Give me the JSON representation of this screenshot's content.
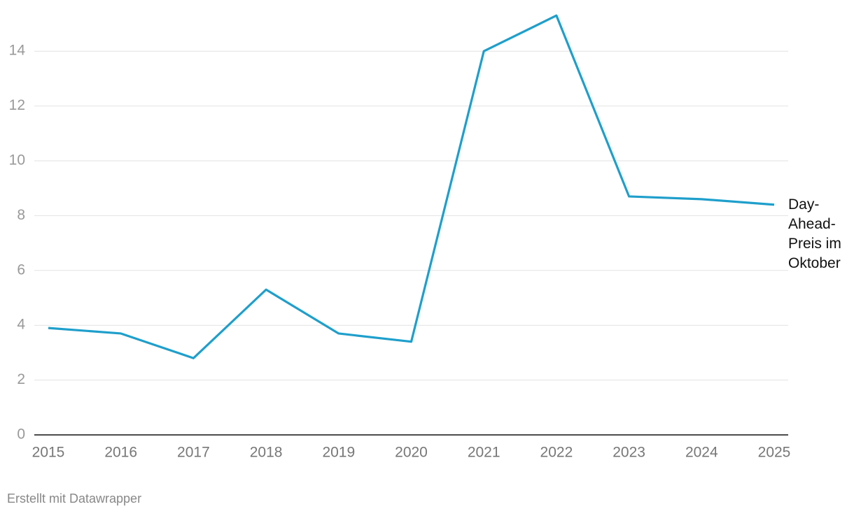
{
  "chart_data": {
    "type": "line",
    "x": [
      2015,
      2016,
      2017,
      2018,
      2019,
      2020,
      2021,
      2022,
      2023,
      2024,
      2025
    ],
    "series": [
      {
        "name": "Day-Ahead-Preis im Oktober",
        "color": "#1e9fcb",
        "values": [
          3.9,
          3.7,
          2.8,
          5.3,
          3.7,
          3.4,
          14.0,
          15.3,
          8.7,
          8.6,
          8.4
        ]
      }
    ],
    "xlim": [
      2015,
      2025
    ],
    "xticks": [
      2015,
      2016,
      2017,
      2018,
      2019,
      2020,
      2021,
      2022,
      2023,
      2024,
      2025
    ],
    "ylim": [
      0,
      15.5
    ],
    "yticks": [
      0,
      2,
      4,
      6,
      8,
      10,
      12,
      14
    ],
    "grid": true,
    "source": "Erstellt mit Datawrapper"
  }
}
